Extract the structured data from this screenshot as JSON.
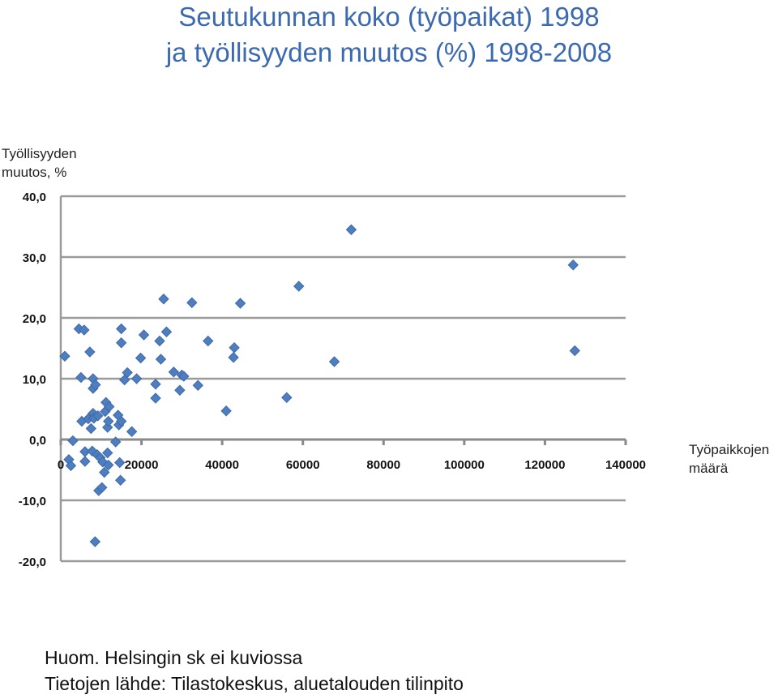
{
  "chart_data": {
    "type": "scatter",
    "title": "Seutukunnan koko (työpaikat) 1998",
    "subtitle": "ja työllisyyden muutos (%) 1998-2008",
    "ylabel": "Työllisyyden muutos, %",
    "ylabel_lines": [
      "Työllisyyden",
      "muutos, %"
    ],
    "xlabel": "Työpaikkojen määrä",
    "xlabel_lines": [
      "Työpaikkojen",
      "määrä"
    ],
    "xlim": [
      0,
      140000
    ],
    "ylim": [
      -20,
      40
    ],
    "x_ticks": [
      0,
      20000,
      40000,
      60000,
      80000,
      100000,
      120000,
      140000
    ],
    "x_tick_labels": [
      "0",
      "20000",
      "40000",
      "60000",
      "80000",
      "100000",
      "120000",
      "140000"
    ],
    "y_ticks": [
      40,
      30,
      20,
      10,
      0,
      -10,
      -20
    ],
    "y_tick_labels": [
      "40,0",
      "30,0",
      "20,0",
      "10,0",
      "0,0",
      "-10,0",
      "-20,0"
    ],
    "grid": "horizontal",
    "marker_color": "#4f7ec0",
    "series": [
      {
        "points": [
          [
            1000,
            13.7
          ],
          [
            2000,
            -3.3
          ],
          [
            2500,
            -4.3
          ],
          [
            3000,
            -0.2
          ],
          [
            4500,
            18.2
          ],
          [
            5000,
            10.2
          ],
          [
            5200,
            3.0
          ],
          [
            5800,
            18.0
          ],
          [
            6000,
            -2.0
          ],
          [
            6000,
            -3.6
          ],
          [
            6800,
            3.4
          ],
          [
            7200,
            14.4
          ],
          [
            7500,
            1.8
          ],
          [
            7800,
            -1.9
          ],
          [
            8000,
            8.4
          ],
          [
            8000,
            4.3
          ],
          [
            8000,
            10.0
          ],
          [
            8200,
            3.5
          ],
          [
            8500,
            -16.8
          ],
          [
            8600,
            9.0
          ],
          [
            9000,
            -2.5
          ],
          [
            9200,
            3.9
          ],
          [
            9400,
            -8.4
          ],
          [
            9800,
            -3.0
          ],
          [
            10200,
            -7.9
          ],
          [
            10400,
            -3.7
          ],
          [
            10800,
            -5.4
          ],
          [
            11000,
            4.6
          ],
          [
            11200,
            6.1
          ],
          [
            11600,
            2.0
          ],
          [
            11600,
            -2.2
          ],
          [
            11800,
            3.0
          ],
          [
            11800,
            -4.2
          ],
          [
            12000,
            5.4
          ],
          [
            13600,
            -0.4
          ],
          [
            14200,
            4.0
          ],
          [
            14400,
            2.4
          ],
          [
            14600,
            -3.8
          ],
          [
            14800,
            -6.7
          ],
          [
            15000,
            3.0
          ],
          [
            15000,
            18.2
          ],
          [
            15000,
            15.9
          ],
          [
            15800,
            9.8
          ],
          [
            16500,
            11.0
          ],
          [
            17600,
            1.3
          ],
          [
            18800,
            10.0
          ],
          [
            19800,
            13.4
          ],
          [
            20600,
            17.2
          ],
          [
            23500,
            9.1
          ],
          [
            23500,
            6.8
          ],
          [
            24500,
            16.2
          ],
          [
            24800,
            13.2
          ],
          [
            25500,
            23.1
          ],
          [
            26200,
            17.7
          ],
          [
            28000,
            11.1
          ],
          [
            29500,
            8.1
          ],
          [
            30000,
            10.6
          ],
          [
            30500,
            10.4
          ],
          [
            32500,
            22.5
          ],
          [
            34000,
            8.9
          ],
          [
            36500,
            16.2
          ],
          [
            41000,
            4.7
          ],
          [
            42800,
            13.5
          ],
          [
            43000,
            15.1
          ],
          [
            44500,
            22.4
          ],
          [
            56000,
            6.9
          ],
          [
            59000,
            25.2
          ],
          [
            67800,
            12.8
          ],
          [
            72000,
            34.5
          ],
          [
            127000,
            28.7
          ],
          [
            127400,
            14.6
          ]
        ]
      }
    ]
  },
  "notes": {
    "line1": "Huom. Helsingin sk ei kuviossa",
    "line2": "Tietojen lähde: Tilastokeskus, aluetalouden tilinpito"
  }
}
